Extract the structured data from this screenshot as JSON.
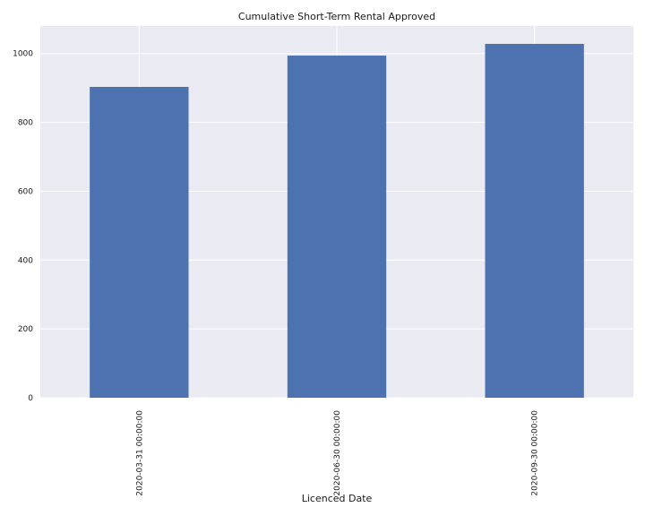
{
  "chart_data": {
    "type": "bar",
    "title": "Cumulative Short-Term Rental Approved",
    "xlabel": "Licenced Date",
    "ylabel": "",
    "categories": [
      "2020-03-31 00:00:00",
      "2020-06-30 00:00:00",
      "2020-09-30 00:00:00"
    ],
    "values": [
      903,
      994,
      1028
    ],
    "ylim": [
      0,
      1080
    ],
    "yticks": [
      "0",
      "200",
      "400",
      "600",
      "800",
      "1000"
    ],
    "ytick_values": [
      0,
      200,
      400,
      600,
      800,
      1000
    ],
    "grid": true,
    "legend": "none",
    "colors": {
      "bar": "#4c72b0",
      "plot_background": "#eaeaf2",
      "grid": "#ffffff"
    }
  }
}
